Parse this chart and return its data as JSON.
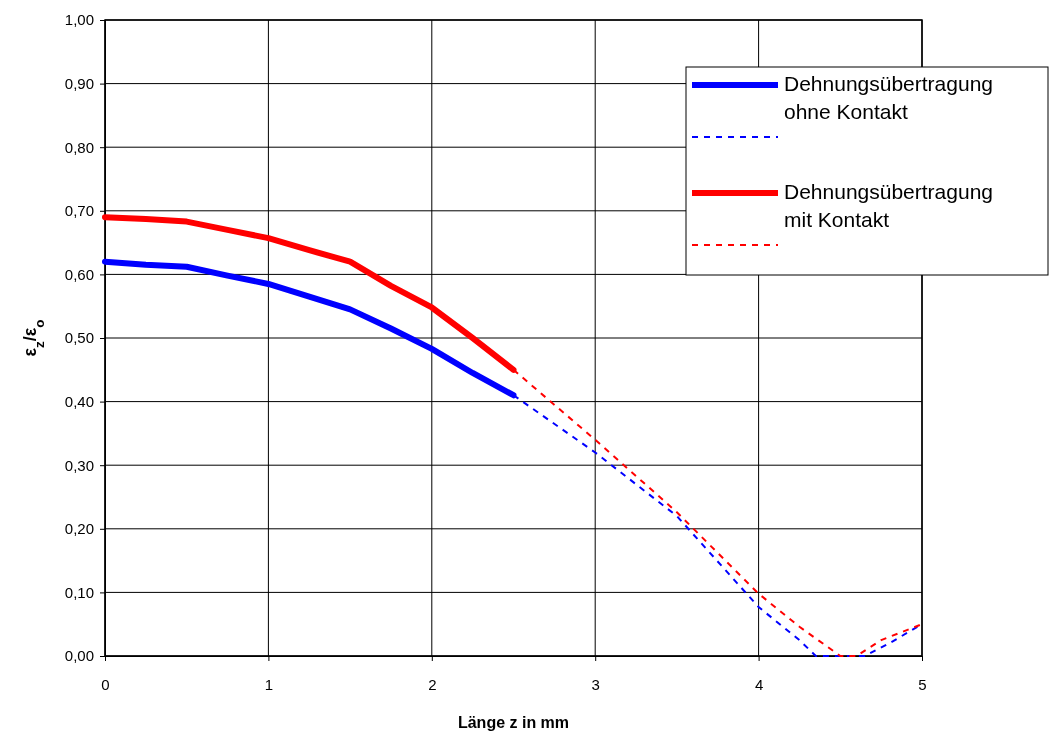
{
  "chart_data": {
    "type": "line",
    "xlabel": "Länge z in mm",
    "ylabel": "ε$_{z}$/ε$_{o}$",
    "xlim": [
      0,
      5
    ],
    "xticks": [
      0,
      1,
      2,
      3,
      4,
      5
    ],
    "ylim": [
      0,
      1
    ],
    "yticks": [
      {
        "value": 0,
        "label": "0,00"
      },
      {
        "value": 0.1,
        "label": "0,10"
      },
      {
        "value": 0.2,
        "label": "0,20"
      },
      {
        "value": 0.3,
        "label": "0,30"
      },
      {
        "value": 0.4,
        "label": "0,40"
      },
      {
        "value": 0.5,
        "label": "0,50"
      },
      {
        "value": 0.6,
        "label": "0,60"
      },
      {
        "value": 0.7,
        "label": "0,70"
      },
      {
        "value": 0.8,
        "label": "0,80"
      },
      {
        "value": 0.9,
        "label": "0,90"
      },
      {
        "value": 1,
        "label": "1,00"
      }
    ],
    "grid": true,
    "legend": "top right",
    "marker": "none",
    "series": [
      {
        "name": "Dehnungsübertragung ohne Kontakt",
        "color": "#0000ff",
        "line_style": "solid",
        "x": [
          0,
          0.25,
          0.5,
          0.75,
          1,
          1.25,
          1.5,
          1.75,
          2,
          2.25,
          2.5
        ],
        "values": [
          0.62,
          0.615,
          0.612,
          0.598,
          0.585,
          0.565,
          0.545,
          0.515,
          0.483,
          0.445,
          0.41
        ]
      },
      {
        "color": "#0000ff",
        "line_style": "dashed",
        "x": [
          2.5,
          3,
          3.5,
          4,
          4.25,
          4.35,
          4.65,
          4.8,
          5
        ],
        "values": [
          0.41,
          0.32,
          0.22,
          0.077,
          0.025,
          0,
          0,
          0.02,
          0.05
        ]
      },
      {
        "name": "Dehnungsübertragung mit Kontakt",
        "color": "#ff0000",
        "line_style": "solid",
        "x": [
          0,
          0.25,
          0.5,
          0.75,
          1,
          1.25,
          1.5,
          1.75,
          2,
          2.25,
          2.5
        ],
        "values": [
          0.69,
          0.687,
          0.683,
          0.67,
          0.657,
          0.638,
          0.62,
          0.582,
          0.548,
          0.5,
          0.45
        ]
      },
      {
        "color": "#ff0000",
        "line_style": "dashed",
        "x": [
          2.5,
          3,
          3.5,
          4,
          4.25,
          4.5,
          4.6,
          4.75,
          5
        ],
        "values": [
          0.45,
          0.34,
          0.226,
          0.098,
          0.046,
          0,
          0,
          0.025,
          0.05
        ]
      }
    ]
  }
}
